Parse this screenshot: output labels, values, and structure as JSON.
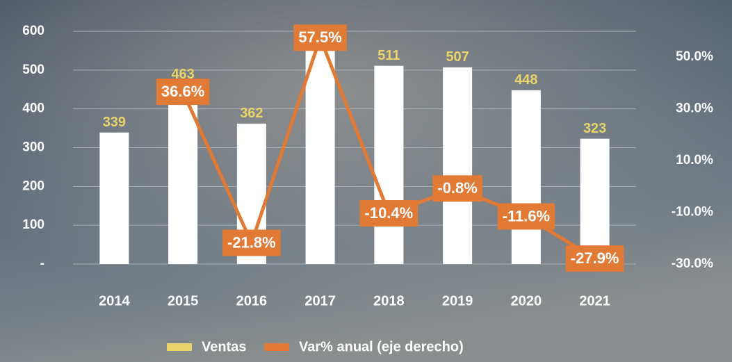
{
  "chart_data": {
    "type": "bar-line",
    "categories": [
      "2014",
      "2015",
      "2016",
      "2017",
      "2018",
      "2019",
      "2020",
      "2021"
    ],
    "series": [
      {
        "name": "Ventas",
        "color": "#e8d46a",
        "bar_color": "#ffffff",
        "type": "bar",
        "values": [
          339,
          463,
          362,
          570,
          511,
          507,
          448,
          323
        ]
      },
      {
        "name": "Var% anual (eje derecho)",
        "color": "#e07a35",
        "type": "line",
        "axis": "y2",
        "values": [
          null,
          36.6,
          -21.8,
          57.5,
          -10.4,
          -0.8,
          -11.6,
          -27.9
        ],
        "value_labels": [
          null,
          "36.6%",
          "-21.8%",
          "57.5%",
          "-10.4%",
          "-0.8%",
          "-11.6%",
          "-27.9%"
        ]
      }
    ],
    "ylim": [
      0,
      600
    ],
    "yticks": [
      {
        "value": 0,
        "label": "-"
      },
      100,
      200,
      300,
      400,
      500,
      600
    ],
    "y2lim": [
      -30,
      60
    ],
    "y2ticks": [
      {
        "value": -30,
        "label": "-30.0%"
      },
      {
        "value": -10,
        "label": "-10.0%"
      },
      {
        "value": 10,
        "label": "10.0%"
      },
      {
        "value": 30,
        "label": "30.0%"
      },
      {
        "value": 50,
        "label": "50.0%"
      }
    ],
    "grid": true,
    "legend": "bottom"
  }
}
